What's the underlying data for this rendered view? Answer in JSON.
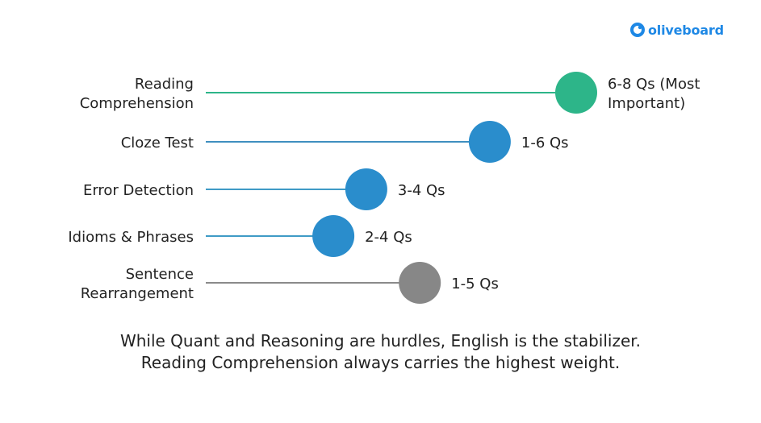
{
  "brand": {
    "name": "oliveboard"
  },
  "chart_data": {
    "type": "scatter",
    "categories": [
      "Reading Comprehension",
      "Cloze Test",
      "Error Detection",
      "Idioms & Phrases",
      "Sentence Rearrangement"
    ],
    "label_lines": [
      [
        "Reading",
        "Comprehension"
      ],
      [
        "Cloze Test"
      ],
      [
        "Error Detection"
      ],
      [
        "Idioms & Phrases"
      ],
      [
        "Sentence",
        "Rearrangement"
      ]
    ],
    "value_labels": [
      [
        "6-8 Qs (Most",
        "Important)"
      ],
      [
        "1-6 Qs"
      ],
      [
        "3-4 Qs"
      ],
      [
        "2-4 Qs"
      ],
      [
        "1-5 Qs"
      ]
    ],
    "relative_magnitude": [
      0.9,
      0.69,
      0.39,
      0.31,
      0.52
    ],
    "colors": [
      "#2db589",
      "#2a8dcc",
      "#2a8dcc",
      "#2a8dcc",
      "#878787"
    ],
    "line_colors": [
      "#2db589",
      "#3f8fbf",
      "#3f9bc6",
      "#3f9bc6",
      "#8a8a8a"
    ],
    "legend": "none",
    "grid": false
  },
  "caption": {
    "line1": "While Quant and Reasoning are hurdles, English is the stabilizer.",
    "line2": "Reading Comprehension always carries the highest weight."
  }
}
